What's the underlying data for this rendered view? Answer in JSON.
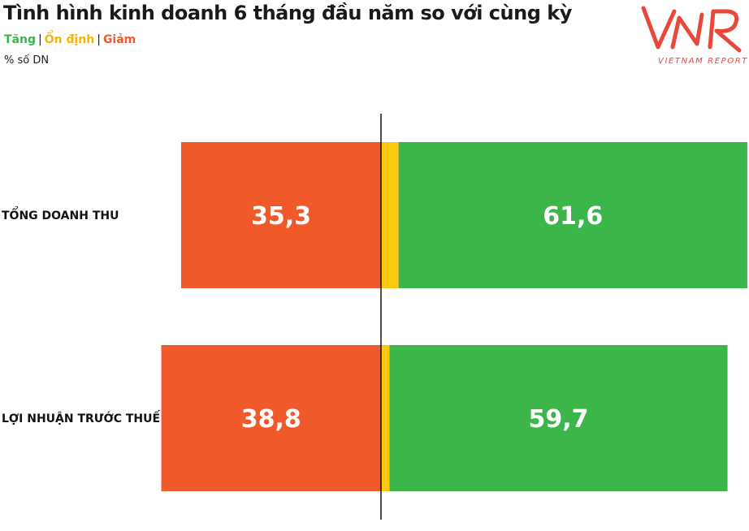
{
  "title": "Tình hình kinh doanh 6 tháng đầu năm so với cùng kỳ",
  "legend": {
    "increase": "Tăng",
    "stable": "Ổn định",
    "decrease": "Giảm",
    "separator": "|"
  },
  "unit": "% số DN",
  "logo": {
    "mark": "VNR",
    "text": "VIETNAM REPORT"
  },
  "colors": {
    "increase": "#3cb54b",
    "stable": "#fcc812",
    "decrease": "#f05a2a",
    "increase_text": "#3cb54b",
    "stable_text": "#f7b500",
    "decrease_text": "#f05a2a",
    "brand": "#e8483a"
  },
  "chart_data": {
    "type": "bar",
    "orientation": "horizontal-diverging",
    "categories": [
      "TỔNG DOANH THU",
      "LỢI NHUẬN TRƯỚC THUẾ"
    ],
    "series": [
      {
        "name": "Giảm",
        "values": [
          35.3,
          38.8
        ],
        "value_labels": [
          "35,3",
          "38,8"
        ]
      },
      {
        "name": "Ổn định",
        "values": [
          3.1,
          1.5
        ]
      },
      {
        "name": "Tăng",
        "values": [
          61.6,
          59.7
        ],
        "value_labels": [
          "61,6",
          "59,7"
        ]
      }
    ],
    "legend_position": "top-left",
    "grid": false
  }
}
